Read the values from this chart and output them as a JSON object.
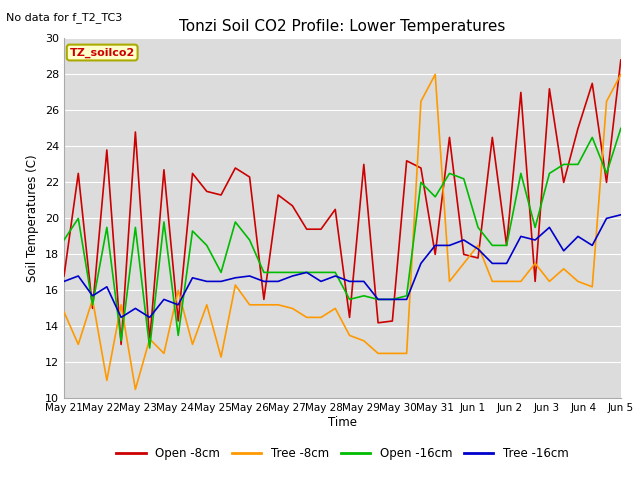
{
  "title": "Tonzi Soil CO2 Profile: Lower Temperatures",
  "subtitle": "No data for f_T2_TC3",
  "xlabel": "Time",
  "ylabel": "Soil Temperatures (C)",
  "ylim": [
    10,
    30
  ],
  "xlim": [
    0,
    15
  ],
  "legend_label": "TZ_soilco2",
  "background_color": "#dcdcdc",
  "series": {
    "open_8cm": {
      "label": "Open -8cm",
      "color": "#cc0000"
    },
    "tree_8cm": {
      "label": "Tree -8cm",
      "color": "#ff9900"
    },
    "open_16cm": {
      "label": "Open -16cm",
      "color": "#00bb00"
    },
    "tree_16cm": {
      "label": "Tree -16cm",
      "color": "#0000cc"
    }
  },
  "x_tick_labels": [
    "May 21",
    "May 22",
    "May 23",
    "May 24",
    "May 25",
    "May 26",
    "May 27",
    "May 28",
    "May 29",
    "May 30",
    "May 31",
    "Jun 1",
    "Jun 2",
    "Jun 3",
    "Jun 4",
    "Jun 5"
  ],
  "open_8cm": [
    16.8,
    22.5,
    15.0,
    23.8,
    13.0,
    24.8,
    13.2,
    22.7,
    14.3,
    22.5,
    21.5,
    21.3,
    22.8,
    22.3,
    15.5,
    21.3,
    20.7,
    19.4,
    19.4,
    20.5,
    14.5,
    23.0,
    14.2,
    14.3,
    23.2,
    22.8,
    18.0,
    24.5,
    18.0,
    17.8,
    24.5,
    18.5,
    27.0,
    16.5,
    27.2,
    22.0,
    25.0,
    27.5,
    22.0,
    28.8
  ],
  "tree_8cm": [
    14.8,
    13.0,
    15.5,
    11.0,
    15.2,
    10.5,
    13.3,
    12.5,
    16.0,
    13.0,
    15.2,
    12.3,
    16.3,
    15.2,
    15.2,
    15.2,
    15.0,
    14.5,
    14.5,
    15.0,
    13.5,
    13.2,
    12.5,
    12.5,
    12.5,
    26.5,
    28.0,
    16.5,
    17.5,
    18.5,
    16.5,
    16.5,
    16.5,
    17.5,
    16.5,
    17.2,
    16.5,
    16.2,
    26.5,
    28.0
  ],
  "open_16cm": [
    18.8,
    20.0,
    15.2,
    19.5,
    13.2,
    19.5,
    12.8,
    19.8,
    13.5,
    19.3,
    18.5,
    17.0,
    19.8,
    18.8,
    17.0,
    17.0,
    17.0,
    17.0,
    17.0,
    17.0,
    15.5,
    15.7,
    15.5,
    15.5,
    15.7,
    22.0,
    21.2,
    22.5,
    22.2,
    19.5,
    18.5,
    18.5,
    22.5,
    19.5,
    22.5,
    23.0,
    23.0,
    24.5,
    22.5,
    25.0
  ],
  "tree_16cm": [
    16.5,
    16.8,
    15.7,
    16.2,
    14.5,
    15.0,
    14.5,
    15.5,
    15.2,
    16.7,
    16.5,
    16.5,
    16.7,
    16.8,
    16.5,
    16.5,
    16.8,
    17.0,
    16.5,
    16.8,
    16.5,
    16.5,
    15.5,
    15.5,
    15.5,
    17.5,
    18.5,
    18.5,
    18.8,
    18.3,
    17.5,
    17.5,
    19.0,
    18.8,
    19.5,
    18.2,
    19.0,
    18.5,
    20.0,
    20.2
  ]
}
